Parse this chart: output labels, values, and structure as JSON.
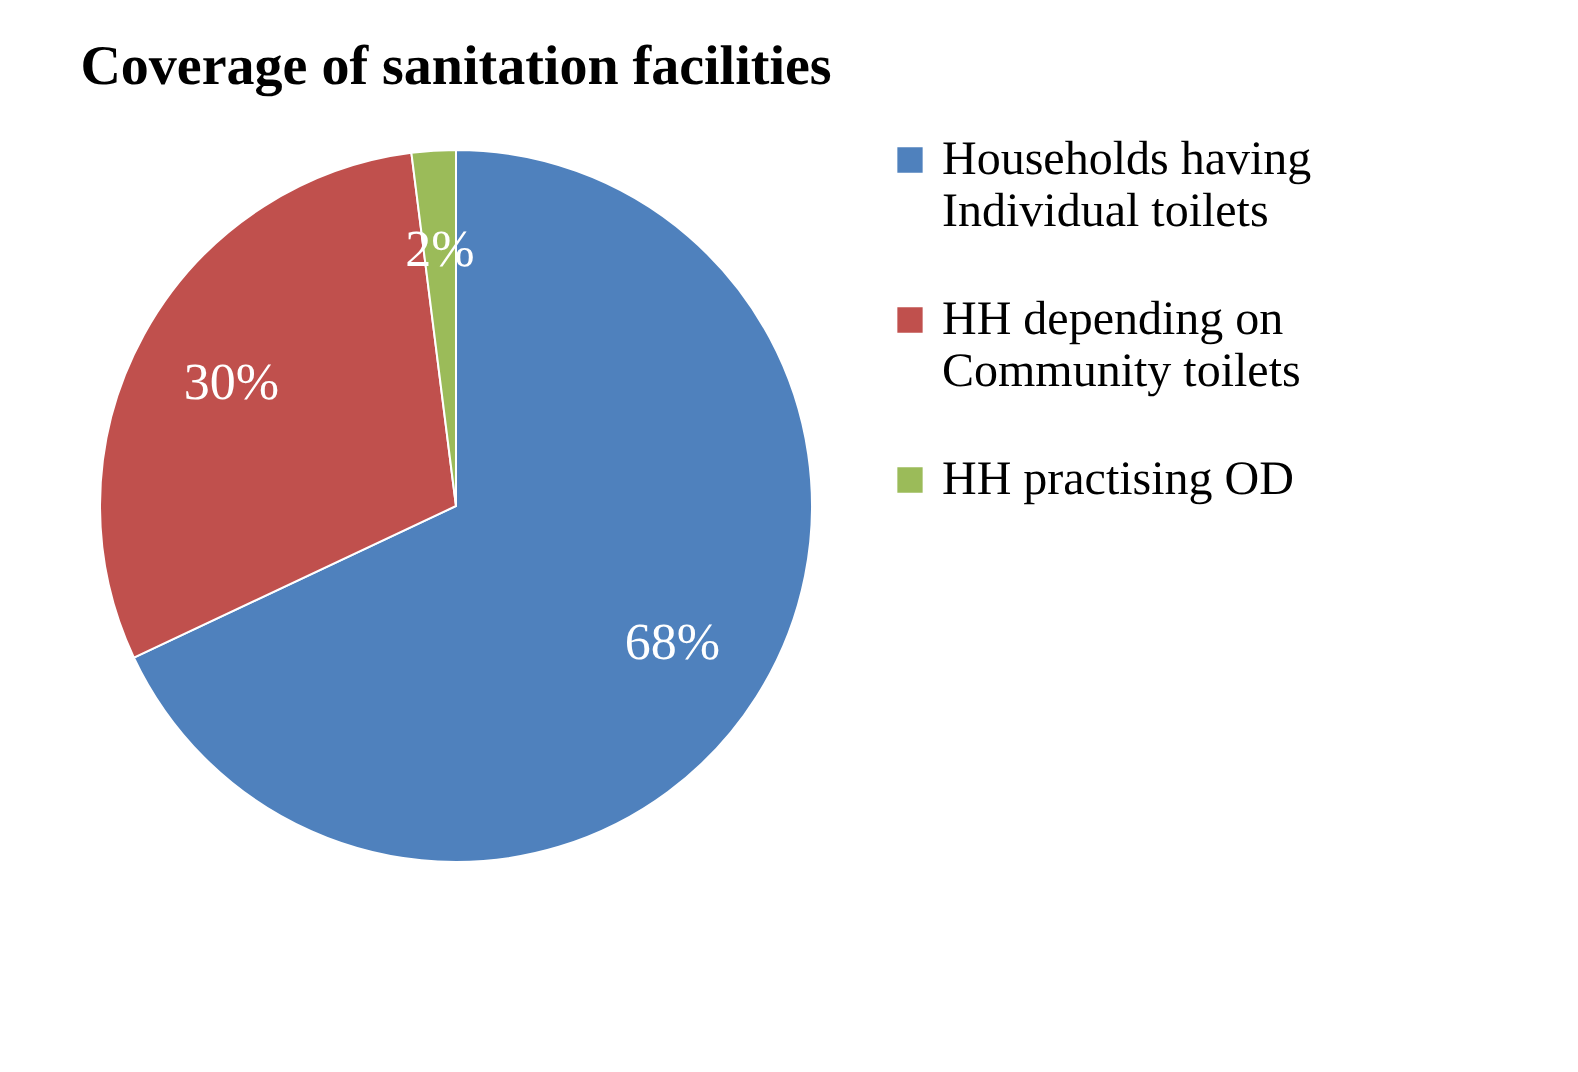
{
  "chart_data": {
    "type": "pie",
    "title": "Coverage of sanitation facilities",
    "categories": [
      "Households having Individual toilets",
      "HH depending on Community toilets",
      "HH practising OD"
    ],
    "values": [
      68,
      30,
      2
    ],
    "colors": [
      "#4f81bd",
      "#c0504d",
      "#9bbb59"
    ],
    "value_labels": [
      "68%",
      "30%",
      "2%"
    ],
    "legend": "right"
  }
}
